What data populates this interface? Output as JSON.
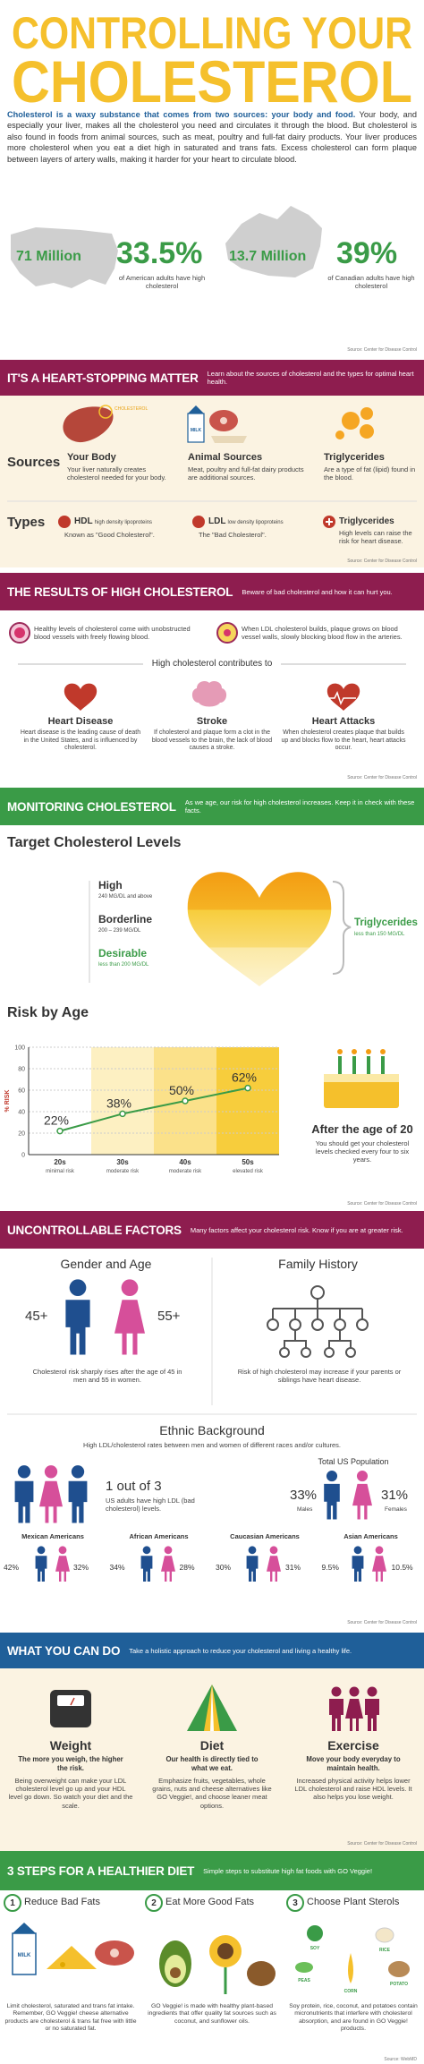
{
  "header": {
    "title_line1": "CONTROLLING YOUR",
    "title_line2": "CHOLESTEROL"
  },
  "intro": {
    "lead": "Cholesterol is a waxy substance that comes from two sources:  your body and food.",
    "body": "Your body, and especially your liver, makes all the cholesterol you need and circulates it through the blood. But cholesterol is also found in foods from animal sources, such as meat, poultry and full-fat dairy products. Your liver produces more cholesterol when you eat a diet high in saturated and trans fats. Excess cholesterol can form plaque between layers of artery walls, making it harder for your heart to circulate blood."
  },
  "stats": {
    "items": [
      {
        "count": "71 Million",
        "percent": "33.5%",
        "caption": "of American adults have high cholesterol"
      },
      {
        "count": "13.7 Million",
        "percent": "39%",
        "caption": "of Canadian adults have high cholesterol"
      }
    ],
    "source": "Source: Center for Disease Control"
  },
  "heart": {
    "banner": "IT'S A HEART-STOPPING MATTER",
    "blurb": "Learn about the sources of cholesterol and the types for optimal heart health.",
    "sources_label": "Sources",
    "liver_label": "CHOLESTEROL",
    "milk_label": "MILK",
    "sources": [
      {
        "title": "Your Body",
        "text": "Your liver naturally creates cholesterol needed for your body."
      },
      {
        "title": "Animal Sources",
        "text": "Meat, poultry and full-fat dairy products are additional sources."
      },
      {
        "title": "Triglycerides",
        "text": "Are a type of fat (lipid) found in the blood."
      }
    ],
    "types_label": "Types",
    "types": [
      {
        "abbr": "HDL",
        "name": "high density lipoproteins",
        "text": "Known as \"Good Cholesterol\"."
      },
      {
        "abbr": "LDL",
        "name": "low density lipoproteins",
        "text": "The \"Bad Cholesterol\"."
      },
      {
        "abbr": "Triglycerides",
        "text": "High levels can raise the risk for heart disease."
      }
    ],
    "source": "Source: Center for Disease Control"
  },
  "results": {
    "banner": "THE RESULTS OF HIGH CHOLESTEROL",
    "blurb": "Beware of bad cholesterol and how it can hurt you.",
    "vessels": [
      "Healthy levels of cholesterol come with unobstructed blood vessels with freely flowing blood.",
      "When LDL cholesterol builds, plaque grows on blood vessel walls, slowly blocking blood flow in the arteries."
    ],
    "contributes": "High cholesterol contributes to",
    "effects": [
      {
        "title": "Heart Disease",
        "text": "Heart disease is the leading cause of death in the United States, and is influenced by cholesterol."
      },
      {
        "title": "Stroke",
        "text": "If cholesterol and plaque form a clot in the blood vessels to the brain, the lack of blood causes a stroke."
      },
      {
        "title": "Heart Attacks",
        "text": "When cholesterol creates plaque that builds up and blocks flow to the heart, heart attacks occur."
      }
    ],
    "source": "Source: Center for Disease Control"
  },
  "monitoring": {
    "banner": "MONITORING CHOLESTEROL",
    "blurb": "As we age, our risk for high cholesterol increases. Keep it in check with these facts.",
    "target_title": "Target Cholesterol Levels",
    "levels": [
      {
        "name": "High",
        "range": "240 MG/DL and above"
      },
      {
        "name": "Borderline",
        "range": "200 – 239 MG/DL"
      },
      {
        "name": "Desirable",
        "range": "less than 200 MG/DL"
      }
    ],
    "triglycerides": {
      "name": "Triglycerides",
      "range": "less than 150 MG/DL"
    },
    "risk_title": "Risk by Age",
    "y_label": "% RISK",
    "risk_chart": {
      "type": "line",
      "categories": [
        "20s",
        "30s",
        "40s",
        "50s"
      ],
      "bands": [
        "minimal risk",
        "moderate risk",
        "moderate risk",
        "elevated risk"
      ],
      "values": [
        22,
        38,
        50,
        62
      ],
      "value_labels": [
        "22%",
        "38%",
        "50%",
        "62%"
      ],
      "ylim": [
        0,
        100
      ],
      "yticks": [
        0,
        20,
        40,
        60,
        80,
        100
      ],
      "color": "#3a9b47",
      "grid": true
    },
    "after_title": "After the age of 20",
    "after_text": "You should get your cholesterol levels checked every four to six years.",
    "source": "Source: Center for Disease Control"
  },
  "uncontrollable": {
    "banner": "UNCONTROLLABLE FACTORS",
    "blurb": "Many factors affect your cholesterol risk. Know if you are at greater risk.",
    "gender": {
      "title": "Gender and Age",
      "male_age": "45+",
      "female_age": "55+",
      "text": "Cholesterol risk sharply rises after the age of 45 in men and 55 in women."
    },
    "family": {
      "title": "Family History",
      "text": "Risk of high cholesterol may increase if your parents or siblings have heart disease."
    },
    "ethnic": {
      "title": "Ethnic Background",
      "subtitle": "High LDL/cholesterol rates between men and women of different races and/or cultures.",
      "stat": "1 out of 3",
      "stat_text": "US adults have high LDL (bad cholesterol) levels.",
      "total": {
        "title": "Total US Population",
        "male": "33%",
        "male_label": "Males",
        "female": "31%",
        "female_label": "Females"
      },
      "groups": [
        {
          "name": "Mexican Americans",
          "male": "42%",
          "female": "32%"
        },
        {
          "name": "African Americans",
          "male": "34%",
          "female": "28%"
        },
        {
          "name": "Caucasian Americans",
          "male": "30%",
          "female": "31%"
        },
        {
          "name": "Asian Americans",
          "male": "9.5%",
          "female": "10.5%"
        }
      ]
    },
    "source": "Source: Center for Disease Control"
  },
  "actions": {
    "banner": "WHAT YOU CAN DO",
    "blurb": "Take a holistic approach to reduce your cholesterol and living a healthy life.",
    "items": [
      {
        "title": "Weight",
        "lead": "The more you weigh, the higher the risk.",
        "text": "Being overweight can make your LDL cholesterol level go up and your HDL level go down. So watch your diet and the scale."
      },
      {
        "title": "Diet",
        "lead": "Our health is directly tied to what we eat.",
        "text": "Emphasize fruits, vegetables, whole grains, nuts and cheese alternatives like GO Veggie!, and choose leaner meat options."
      },
      {
        "title": "Exercise",
        "lead": "Move your body everyday to maintain health.",
        "text": "Increased physical activity helps lower LDL cholesterol and raise HDL levels. It also helps you lose weight."
      }
    ],
    "source": "Source: Center for Disease Control"
  },
  "steps": {
    "banner": "3 STEPS FOR A HEALTHIER DIET",
    "blurb": "Simple steps to substitute high fat foods with GO Veggie!",
    "items": [
      {
        "num": "1",
        "title": "Reduce Bad Fats",
        "text": "Limit cholesterol, saturated and trans fat intake. Remember, GO Veggie! cheese alternative products are cholesterol & trans fat free with little or no saturated fat."
      },
      {
        "num": "2",
        "title": "Eat More Good Fats",
        "text": "GO Veggie! is made with healthy plant-based ingredients that offer quality fat sources such as coconut, and sunflower oils."
      },
      {
        "num": "3",
        "title": "Choose Plant Sterols",
        "text": "Soy protein, rice, coconut, and potatoes contain micronutrients that interfere with cholesterol absorption, and are found in GO Veggie! products."
      }
    ],
    "food_labels": [
      "SOY",
      "RICE",
      "PEAS",
      "CORN",
      "POTATO"
    ],
    "source": "Source: WebMD"
  }
}
